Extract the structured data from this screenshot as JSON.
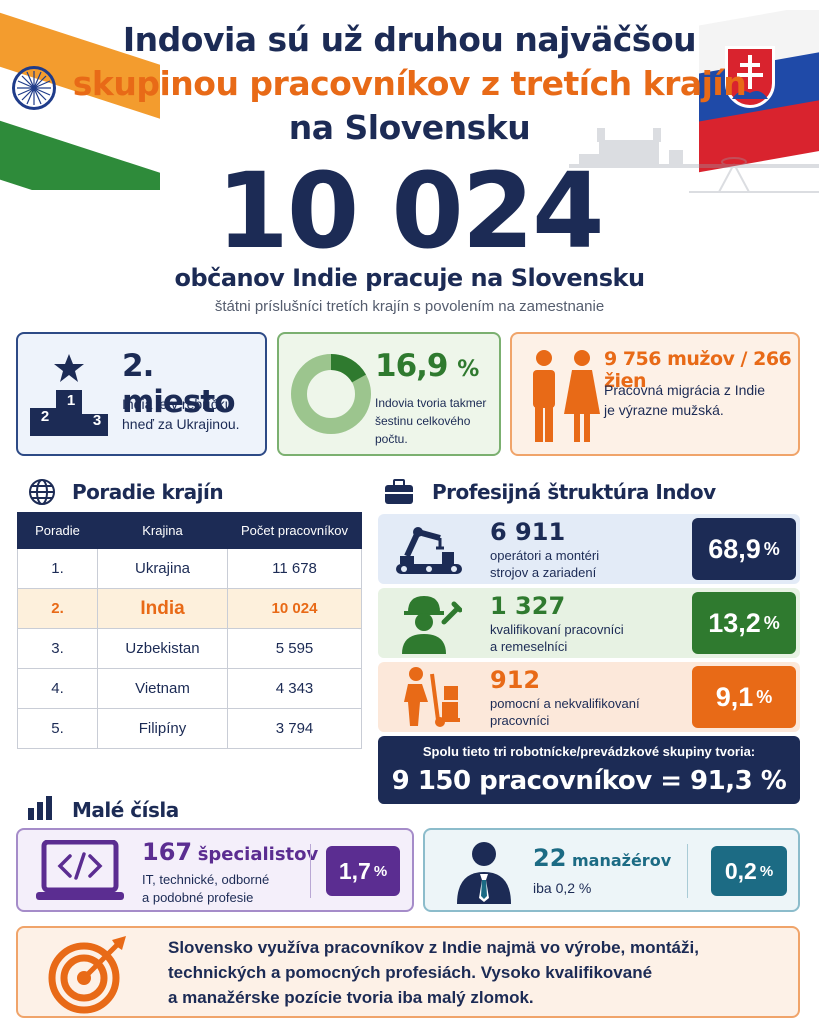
{
  "header": {
    "line1": "Indovia sú už druhou najväčšou",
    "line2": "skupinou pracovníkov z tretích krajín",
    "line3": "na Slovensku"
  },
  "hero": {
    "number": "10 024",
    "subtitle": "občanov Indie pracuje na Slovensku",
    "note": "štátni príslušníci tretích krajín s povolením na zamestnanie"
  },
  "stats": {
    "rank": {
      "title": "2. miesto",
      "desc1": "India je v rebríčku",
      "desc2": "hneď za Ukrajinou.",
      "podium": [
        "2",
        "1",
        "3"
      ]
    },
    "share": {
      "value": "16,9",
      "unit": "%",
      "desc1": "Indovia tvoria takmer",
      "desc2": "šestinu celkového",
      "desc3": "počtu.",
      "fraction": 0.169
    },
    "gender": {
      "title": "9 756 mužov / 266 žien",
      "desc1": "Pracovná migrácia z Indie",
      "desc2": "je výrazne mužská."
    }
  },
  "ranking": {
    "heading": "Poradie krajín",
    "columns": [
      "Poradie",
      "Krajina",
      "Počet pracovníkov"
    ],
    "rows": [
      {
        "rank": "1.",
        "country": "Ukrajina",
        "count": "11 678"
      },
      {
        "rank": "2.",
        "country": "India",
        "count": "10 024"
      },
      {
        "rank": "3.",
        "country": "Uzbekistan",
        "count": "5 595"
      },
      {
        "rank": "4.",
        "country": "Vietnam",
        "count": "4 343"
      },
      {
        "rank": "5.",
        "country": "Filipíny",
        "count": "3 794"
      }
    ]
  },
  "profession": {
    "heading": "Profesijná štruktúra Indov",
    "rows": [
      {
        "count": "6 911",
        "desc1": "operátori a montéri",
        "desc2": "strojov a zariadení",
        "pct": "68,9",
        "unit": "%"
      },
      {
        "count": "1 327",
        "desc1": "kvalifikovaní pracovníci",
        "desc2": "a remeselníci",
        "pct": "13,2",
        "unit": "%"
      },
      {
        "count": "912",
        "desc1": "pomocní a nekvalifikovaní",
        "desc2": "pracovníci",
        "pct": "9,1",
        "unit": "%"
      }
    ],
    "total_label": "Spolu tieto tri robotnícke/prevádzkové skupiny tvoria:",
    "total_value": "9 150 pracovníkov = 91,3 %"
  },
  "small": {
    "heading": "Malé čísla",
    "specialists": {
      "count": "167",
      "label": "špecialistov",
      "desc1": "IT, technické, odborné",
      "desc2": "a podobné profesie",
      "pct": "1,7",
      "unit": "%"
    },
    "managers": {
      "count": "22",
      "label": "manažérov",
      "desc": "iba 0,2 %",
      "pct": "0,2",
      "unit": "%"
    }
  },
  "footer": {
    "line1": "Slovensko využíva pracovníkov z Indie najmä vo výrobe, montáži,",
    "line2": "technických a pomocných profesiách. Vysoko kvalifikované",
    "line3": "a manažérske pozície tvoria iba malý zlomok."
  },
  "colors": {
    "navy": "#1c2b55",
    "orange": "#e86a17",
    "green": "#2f7a2f",
    "purple": "#5b2d91",
    "teal": "#1c6b84"
  }
}
